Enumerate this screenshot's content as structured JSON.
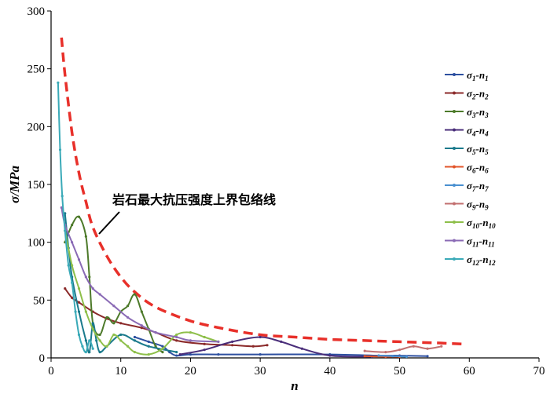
{
  "chart_data": {
    "type": "line",
    "xlabel": "n",
    "ylabel": "σ/MPa",
    "xlim": [
      0,
      70
    ],
    "ylim": [
      0,
      300
    ],
    "x_ticks": [
      "0",
      "10",
      "20",
      "30",
      "40",
      "50",
      "60",
      "70"
    ],
    "y_ticks": [
      "0",
      "50",
      "100",
      "150",
      "200",
      "250",
      "300"
    ],
    "x_tick_values": [
      0,
      10,
      20,
      30,
      40,
      50,
      60,
      70
    ],
    "y_tick_values": [
      0,
      50,
      100,
      150,
      200,
      250,
      300
    ],
    "annotation": "岩石最大抗压强度上界包络线",
    "envelope": {
      "color": "#e8302a",
      "points": [
        [
          1.5,
          277
        ],
        [
          2,
          245
        ],
        [
          3,
          195
        ],
        [
          4,
          160
        ],
        [
          5,
          135
        ],
        [
          6,
          113
        ],
        [
          8,
          88
        ],
        [
          10,
          70
        ],
        [
          12,
          57
        ],
        [
          15,
          44
        ],
        [
          20,
          32
        ],
        [
          25,
          25
        ],
        [
          30,
          20
        ],
        [
          35,
          18
        ],
        [
          40,
          16
        ],
        [
          45,
          15
        ],
        [
          50,
          14
        ],
        [
          55,
          13
        ],
        [
          59,
          12
        ]
      ]
    },
    "series": [
      {
        "name": "σ1-n1",
        "base": "σ",
        "sub1": "1",
        "mid": "-n",
        "sub2": "1",
        "color": "#2d4fa0",
        "points": [
          [
            12,
            18
          ],
          [
            14,
            14
          ],
          [
            16,
            10
          ],
          [
            17,
            5
          ],
          [
            18,
            2
          ],
          [
            20,
            3
          ],
          [
            24,
            3
          ],
          [
            30,
            3
          ],
          [
            40,
            3
          ],
          [
            47,
            2
          ],
          [
            50,
            2
          ],
          [
            54,
            1.5
          ]
        ]
      },
      {
        "name": "σ2-n2",
        "base": "σ",
        "sub1": "2",
        "mid": "-n",
        "sub2": "2",
        "color": "#8b2a2a",
        "points": [
          [
            2,
            60
          ],
          [
            3,
            52
          ],
          [
            4,
            48
          ],
          [
            6,
            40
          ],
          [
            8,
            34
          ],
          [
            10,
            30
          ],
          [
            13,
            26
          ],
          [
            15,
            22
          ],
          [
            18,
            15
          ],
          [
            22,
            12
          ],
          [
            26,
            11
          ],
          [
            29,
            10
          ],
          [
            31,
            11
          ]
        ]
      },
      {
        "name": "σ3-n3",
        "base": "σ",
        "sub1": "3",
        "mid": "-n",
        "sub2": "3",
        "color": "#4d7a2a",
        "points": [
          [
            2,
            100
          ],
          [
            3,
            115
          ],
          [
            4,
            122
          ],
          [
            5,
            105
          ],
          [
            5.5,
            70
          ],
          [
            6,
            30
          ],
          [
            7,
            20
          ],
          [
            8,
            35
          ],
          [
            9,
            30
          ],
          [
            10,
            40
          ],
          [
            11,
            45
          ],
          [
            12,
            55
          ],
          [
            13,
            40
          ],
          [
            14,
            25
          ],
          [
            15,
            10
          ],
          [
            16,
            5
          ]
        ]
      },
      {
        "name": "σ4-n4",
        "base": "σ",
        "sub1": "4",
        "mid": "-n",
        "sub2": "4",
        "color": "#4a2e7a",
        "points": [
          [
            18.5,
            3
          ],
          [
            22,
            7
          ],
          [
            26,
            14
          ],
          [
            30,
            18
          ],
          [
            33,
            14
          ],
          [
            36,
            8
          ],
          [
            40,
            2
          ],
          [
            46,
            1
          ]
        ]
      },
      {
        "name": "σ5-n5",
        "base": "σ",
        "sub1": "5",
        "mid": "-n",
        "sub2": "5",
        "color": "#1b7a8c",
        "points": [
          [
            2,
            125
          ],
          [
            2.5,
            95
          ],
          [
            3,
            70
          ],
          [
            4,
            40
          ],
          [
            5,
            15
          ],
          [
            5.5,
            5
          ],
          [
            6,
            30
          ],
          [
            6.5,
            15
          ],
          [
            7,
            5
          ],
          [
            8,
            10
          ],
          [
            10,
            20
          ],
          [
            12,
            15
          ],
          [
            14,
            10
          ],
          [
            18,
            5
          ]
        ]
      },
      {
        "name": "σ6-n6",
        "base": "σ",
        "sub1": "6",
        "mid": "-n",
        "sub2": "6",
        "color": "#e2552a",
        "points": [
          [
            45,
            1.5
          ],
          [
            48,
            1
          ],
          [
            50,
            1
          ]
        ]
      },
      {
        "name": "σ7-n7",
        "base": "σ",
        "sub1": "7",
        "mid": "-n",
        "sub2": "7",
        "color": "#4a90d0",
        "points": [
          [
            47,
            2
          ],
          [
            49,
            1.5
          ],
          [
            51,
            1
          ]
        ]
      },
      {
        "name": "σ9-n9",
        "base": "σ",
        "sub1": "9",
        "mid": "-n",
        "sub2": "9",
        "color": "#c27070",
        "points": [
          [
            45,
            6
          ],
          [
            48,
            5
          ],
          [
            50,
            7
          ],
          [
            52,
            10
          ],
          [
            54,
            8
          ],
          [
            56,
            10
          ]
        ]
      },
      {
        "name": "σ10-n10",
        "base": "σ",
        "sub1": "10",
        "mid": "-n",
        "sub2": "10",
        "color": "#8ebf4a",
        "points": [
          [
            2,
            110
          ],
          [
            3,
            80
          ],
          [
            4,
            60
          ],
          [
            5,
            40
          ],
          [
            6,
            25
          ],
          [
            7,
            15
          ],
          [
            8,
            10
          ],
          [
            9,
            20
          ],
          [
            10,
            15
          ],
          [
            11,
            10
          ],
          [
            12,
            5
          ],
          [
            14,
            3
          ],
          [
            16,
            8
          ],
          [
            18,
            20
          ],
          [
            20,
            22
          ],
          [
            22,
            18
          ],
          [
            24,
            14
          ]
        ]
      },
      {
        "name": "σ11-n11",
        "base": "σ",
        "sub1": "11",
        "mid": "-n",
        "sub2": "11",
        "color": "#8a6ab5",
        "points": [
          [
            1.5,
            130
          ],
          [
            2,
            115
          ],
          [
            3,
            100
          ],
          [
            4,
            85
          ],
          [
            5,
            70
          ],
          [
            6,
            60
          ],
          [
            7,
            55
          ],
          [
            9,
            45
          ],
          [
            11,
            35
          ],
          [
            13,
            28
          ],
          [
            15,
            22
          ],
          [
            18,
            18
          ],
          [
            20,
            15
          ],
          [
            24,
            14
          ]
        ]
      },
      {
        "name": "σ12-n12",
        "base": "σ",
        "sub1": "12",
        "mid": "-n",
        "sub2": "12",
        "color": "#3aaab8",
        "points": [
          [
            1,
            238
          ],
          [
            1.3,
            180
          ],
          [
            1.6,
            140
          ],
          [
            2,
            110
          ],
          [
            2.5,
            80
          ],
          [
            3,
            65
          ],
          [
            3.5,
            40
          ],
          [
            4,
            20
          ],
          [
            4.5,
            10
          ],
          [
            5,
            5
          ],
          [
            5.5,
            15
          ],
          [
            6,
            8
          ]
        ]
      }
    ]
  }
}
